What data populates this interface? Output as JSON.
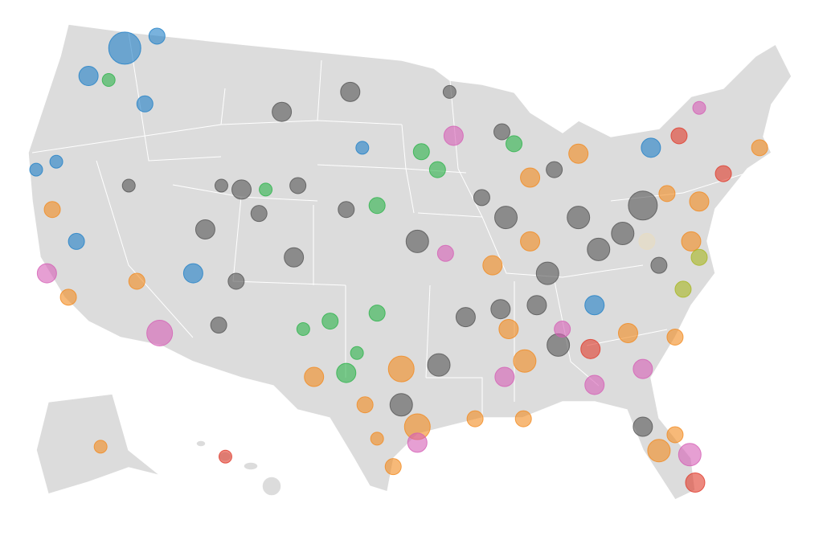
{
  "map": {
    "bubbles": [
      {
        "lon": -117.1,
        "lat": 48.2,
        "size": 20,
        "color": "#1f7fc7"
      },
      {
        "lon": -114.7,
        "lat": 48.8,
        "size": 10,
        "color": "#1f7fc7"
      },
      {
        "lon": -119.8,
        "lat": 46.8,
        "size": 12,
        "color": "#1f7fc7"
      },
      {
        "lon": -118.3,
        "lat": 46.6,
        "size": 8,
        "color": "#2cb34a"
      },
      {
        "lon": -105.4,
        "lat": 45.0,
        "size": 12,
        "color": "#555555"
      },
      {
        "lon": -100.3,
        "lat": 46.0,
        "size": 12,
        "color": "#555555"
      },
      {
        "lon": -92.9,
        "lat": 46.0,
        "size": 8,
        "color": "#555555"
      },
      {
        "lon": -77.9,
        "lat": 43.2,
        "size": 12,
        "color": "#1f7fc7"
      },
      {
        "lon": -75.8,
        "lat": 43.8,
        "size": 10,
        "color": "#e03a2a"
      },
      {
        "lon": -74.3,
        "lat": 45.2,
        "size": 8,
        "color": "#d55fb5"
      },
      {
        "lon": -69.8,
        "lat": 43.2,
        "size": 10,
        "color": "#f28a1e"
      },
      {
        "lon": -108.4,
        "lat": 41.1,
        "size": 12,
        "color": "#555555"
      },
      {
        "lon": -111.1,
        "lat": 39.1,
        "size": 12,
        "color": "#555555"
      },
      {
        "lon": -112.0,
        "lat": 36.9,
        "size": 12,
        "color": "#1f7fc7"
      },
      {
        "lon": -108.8,
        "lat": 36.5,
        "size": 10,
        "color": "#555555"
      },
      {
        "lon": -107.1,
        "lat": 39.9,
        "size": 10,
        "color": "#555555"
      },
      {
        "lon": -100.6,
        "lat": 40.1,
        "size": 10,
        "color": "#555555"
      },
      {
        "lon": -104.2,
        "lat": 41.3,
        "size": 10,
        "color": "#555555"
      },
      {
        "lon": -104.5,
        "lat": 37.7,
        "size": 12,
        "color": "#555555"
      },
      {
        "lon": -114.5,
        "lat": 33.9,
        "size": 16,
        "color": "#d55fb5"
      },
      {
        "lon": -122.9,
        "lat": 36.9,
        "size": 12,
        "color": "#d55fb5"
      },
      {
        "lon": -121.3,
        "lat": 35.7,
        "size": 10,
        "color": "#f28a1e"
      },
      {
        "lon": -116.2,
        "lat": 36.5,
        "size": 10,
        "color": "#f28a1e"
      },
      {
        "lon": -110.1,
        "lat": 34.3,
        "size": 10,
        "color": "#555555"
      },
      {
        "lon": -103.0,
        "lat": 31.7,
        "size": 12,
        "color": "#f28a1e"
      },
      {
        "lon": -100.6,
        "lat": 31.9,
        "size": 12,
        "color": "#2cb34a"
      },
      {
        "lon": -101.8,
        "lat": 34.5,
        "size": 10,
        "color": "#2cb34a"
      },
      {
        "lon": -98.3,
        "lat": 34.9,
        "size": 10,
        "color": "#2cb34a"
      },
      {
        "lon": -96.5,
        "lat": 32.1,
        "size": 16,
        "color": "#f28a1e"
      },
      {
        "lon": -95.3,
        "lat": 29.2,
        "size": 16,
        "color": "#f28a1e"
      },
      {
        "lon": -97.1,
        "lat": 27.2,
        "size": 10,
        "color": "#f28a1e"
      },
      {
        "lon": -98.3,
        "lat": 28.6,
        "size": 8,
        "color": "#f28a1e"
      },
      {
        "lon": -93.7,
        "lat": 32.3,
        "size": 14,
        "color": "#555555"
      },
      {
        "lon": -95.3,
        "lat": 38.5,
        "size": 14,
        "color": "#555555"
      },
      {
        "lon": -93.2,
        "lat": 37.9,
        "size": 10,
        "color": "#d55fb5"
      },
      {
        "lon": -91.7,
        "lat": 34.7,
        "size": 12,
        "color": "#555555"
      },
      {
        "lon": -92.6,
        "lat": 43.8,
        "size": 12,
        "color": "#d55fb5"
      },
      {
        "lon": -88.7,
        "lat": 39.7,
        "size": 14,
        "color": "#555555"
      },
      {
        "lon": -86.9,
        "lat": 41.7,
        "size": 12,
        "color": "#f28a1e"
      },
      {
        "lon": -85.1,
        "lat": 42.1,
        "size": 10,
        "color": "#555555"
      },
      {
        "lon": -83.3,
        "lat": 42.9,
        "size": 12,
        "color": "#f28a1e"
      },
      {
        "lon": -81.8,
        "lat": 38.1,
        "size": 14,
        "color": "#555555"
      },
      {
        "lon": -83.3,
        "lat": 39.7,
        "size": 14,
        "color": "#555555"
      },
      {
        "lon": -80.0,
        "lat": 38.9,
        "size": 14,
        "color": "#555555"
      },
      {
        "lon": -78.5,
        "lat": 40.3,
        "size": 18,
        "color": "#555555"
      },
      {
        "lon": -76.7,
        "lat": 40.9,
        "size": 10,
        "color": "#f28a1e"
      },
      {
        "lon": -74.3,
        "lat": 40.5,
        "size": 12,
        "color": "#f28a1e"
      },
      {
        "lon": -72.5,
        "lat": 41.9,
        "size": 10,
        "color": "#e03a2a"
      },
      {
        "lon": -74.9,
        "lat": 38.5,
        "size": 12,
        "color": "#f28a1e"
      },
      {
        "lon": -77.3,
        "lat": 37.3,
        "size": 10,
        "color": "#555555"
      },
      {
        "lon": -75.5,
        "lat": 36.1,
        "size": 10,
        "color": "#a6b61e"
      },
      {
        "lon": -82.1,
        "lat": 35.3,
        "size": 12,
        "color": "#1f7fc7"
      },
      {
        "lon": -84.8,
        "lat": 33.3,
        "size": 14,
        "color": "#555555"
      },
      {
        "lon": -82.4,
        "lat": 33.1,
        "size": 12,
        "color": "#e03a2a"
      },
      {
        "lon": -84.5,
        "lat": 34.1,
        "size": 10,
        "color": "#d55fb5"
      },
      {
        "lon": -78.5,
        "lat": 32.1,
        "size": 12,
        "color": "#d55fb5"
      },
      {
        "lon": -76.1,
        "lat": 33.7,
        "size": 10,
        "color": "#f28a1e"
      },
      {
        "lon": -82.1,
        "lat": 31.3,
        "size": 12,
        "color": "#d55fb5"
      },
      {
        "lon": -88.8,
        "lat": 31.7,
        "size": 12,
        "color": "#d55fb5"
      },
      {
        "lon": -87.3,
        "lat": 32.5,
        "size": 14,
        "color": "#f28a1e"
      },
      {
        "lon": -88.5,
        "lat": 34.1,
        "size": 12,
        "color": "#f28a1e"
      },
      {
        "lon": -86.4,
        "lat": 35.3,
        "size": 12,
        "color": "#555555"
      },
      {
        "lon": -89.1,
        "lat": 35.1,
        "size": 12,
        "color": "#555555"
      },
      {
        "lon": -85.6,
        "lat": 36.9,
        "size": 14,
        "color": "#555555"
      },
      {
        "lon": -89.7,
        "lat": 37.3,
        "size": 12,
        "color": "#f28a1e"
      },
      {
        "lon": -86.9,
        "lat": 38.5,
        "size": 12,
        "color": "#f28a1e"
      },
      {
        "lon": -78.5,
        "lat": 29.2,
        "size": 12,
        "color": "#555555"
      },
      {
        "lon": -77.3,
        "lat": 28.0,
        "size": 14,
        "color": "#f28a1e"
      },
      {
        "lon": -75.0,
        "lat": 27.8,
        "size": 14,
        "color": "#d55fb5"
      },
      {
        "lon": -74.6,
        "lat": 26.4,
        "size": 12,
        "color": "#e03a2a"
      },
      {
        "lon": -76.1,
        "lat": 28.8,
        "size": 10,
        "color": "#f28a1e"
      },
      {
        "lon": -91.0,
        "lat": 29.6,
        "size": 10,
        "color": "#f28a1e"
      },
      {
        "lon": -87.4,
        "lat": 29.6,
        "size": 10,
        "color": "#f28a1e"
      },
      {
        "lon": -95.3,
        "lat": 28.4,
        "size": 12,
        "color": "#d55fb5"
      },
      {
        "lon": -99.2,
        "lat": 30.3,
        "size": 10,
        "color": "#f28a1e"
      },
      {
        "lon": -96.5,
        "lat": 30.3,
        "size": 14,
        "color": "#555555"
      },
      {
        "lon": -99.8,
        "lat": 32.9,
        "size": 8,
        "color": "#2cb34a"
      },
      {
        "lon": -103.8,
        "lat": 34.1,
        "size": 8,
        "color": "#2cb34a"
      },
      {
        "lon": -88.1,
        "lat": 43.4,
        "size": 10,
        "color": "#2cb34a"
      },
      {
        "lon": -95.0,
        "lat": 43.0,
        "size": 10,
        "color": "#2cb34a"
      },
      {
        "lon": -93.8,
        "lat": 42.1,
        "size": 10,
        "color": "#2cb34a"
      },
      {
        "lon": -98.3,
        "lat": 40.3,
        "size": 10,
        "color": "#2cb34a"
      },
      {
        "lon": -90.5,
        "lat": 40.7,
        "size": 10,
        "color": "#555555"
      },
      {
        "lon": -89.0,
        "lat": 44.0,
        "size": 10,
        "color": "#555555"
      },
      {
        "lon": -109.9,
        "lat": 41.3,
        "size": 8,
        "color": "#555555"
      },
      {
        "lon": -116.8,
        "lat": 41.3,
        "size": 8,
        "color": "#555555"
      },
      {
        "lon": -122.5,
        "lat": 40.1,
        "size": 10,
        "color": "#f28a1e"
      },
      {
        "lon": -120.7,
        "lat": 38.5,
        "size": 10,
        "color": "#1f7fc7"
      },
      {
        "lon": -123.7,
        "lat": 42.1,
        "size": 8,
        "color": "#1f7fc7"
      },
      {
        "lon": -122.2,
        "lat": 42.5,
        "size": 8,
        "color": "#1f7fc7"
      },
      {
        "lon": -99.4,
        "lat": 43.2,
        "size": 8,
        "color": "#1f7fc7"
      },
      {
        "lon": -78.2,
        "lat": 38.5,
        "size": 10,
        "color": "#e8dcc0"
      },
      {
        "lon": -74.3,
        "lat": 37.7,
        "size": 10,
        "color": "#a6b61e"
      },
      {
        "lon": -106.6,
        "lat": 41.1,
        "size": 8,
        "color": "#2cb34a"
      },
      {
        "lon": -115.6,
        "lat": 45.4,
        "size": 10,
        "color": "#1f7fc7"
      },
      {
        "lon": -79.6,
        "lat": 33.9,
        "size": 12,
        "color": "#f28a1e"
      },
      {
        "lon": -118.9,
        "lat": 28.2,
        "size": 8,
        "color": "#f28a1e"
      },
      {
        "lon": -109.6,
        "lat": 27.7,
        "size": 8,
        "color": "#e03a2a"
      }
    ]
  }
}
